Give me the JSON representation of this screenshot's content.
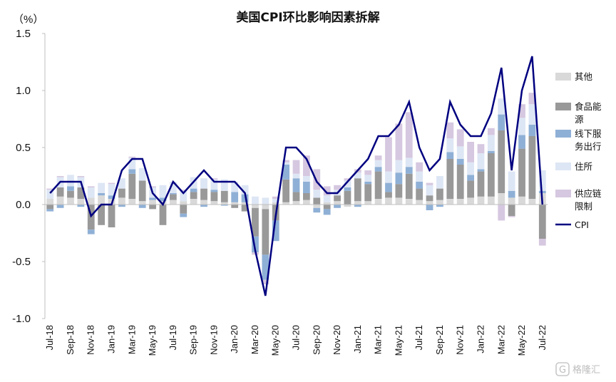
{
  "chart_data": {
    "type": "bar",
    "title": "美国CPI环比影响因素拆解",
    "ylabel": "（%）",
    "xlabel": "",
    "ylim": [
      -1.0,
      1.5
    ],
    "yticks": [
      {
        "value": 1.5,
        "label": "1.5",
        "color": "#111111"
      },
      {
        "value": 1.0,
        "label": "1.0",
        "color": "#111111"
      },
      {
        "value": 0.5,
        "label": "0.5",
        "color": "#111111"
      },
      {
        "value": 0.0,
        "label": "0.0",
        "color": "#111111"
      },
      {
        "value": -0.5,
        "label": "-0.5",
        "color": "#e0191f"
      },
      {
        "value": -1.0,
        "label": "-1.0",
        "color": "#e0191f"
      }
    ],
    "grid": false,
    "legend_position": "right",
    "categories": [
      "Jul-18",
      "Aug-18",
      "Sep-18",
      "Oct-18",
      "Nov-18",
      "Dec-18",
      "Jan-19",
      "Feb-19",
      "Mar-19",
      "Apr-19",
      "May-19",
      "Jun-19",
      "Jul-19",
      "Aug-19",
      "Sep-19",
      "Oct-19",
      "Nov-19",
      "Dec-19",
      "Jan-20",
      "Feb-20",
      "Mar-20",
      "Apr-20",
      "May-20",
      "Jun-20",
      "Jul-20",
      "Aug-20",
      "Sep-20",
      "Oct-20",
      "Nov-20",
      "Dec-20",
      "Jan-21",
      "Feb-21",
      "Mar-21",
      "Apr-21",
      "May-21",
      "Jun-21",
      "Jul-21",
      "Aug-21",
      "Sep-21",
      "Oct-21",
      "Nov-21",
      "Dec-21",
      "Jan-22",
      "Feb-22",
      "Mar-22",
      "Apr-22",
      "May-22",
      "Jun-22",
      "Jul-22"
    ],
    "xtick_labels": [
      "Jul-18",
      "",
      "Sep-18",
      "",
      "Nov-18",
      "",
      "Jan-19",
      "",
      "Mar-19",
      "",
      "May-19",
      "",
      "Jul-19",
      "",
      "Sep-19",
      "",
      "Nov-19",
      "",
      "Jan-20",
      "",
      "Mar-20",
      "",
      "May-20",
      "",
      "Jul-20",
      "",
      "Sep-20",
      "",
      "Nov-20",
      "",
      "Jan-21",
      "",
      "Mar-21",
      "",
      "May-21",
      "",
      "Jul-21",
      "",
      "Sep-21",
      "",
      "Nov-21",
      "",
      "Jan-22",
      "",
      "Mar-22",
      "",
      "May-22",
      "",
      "Jul-22"
    ],
    "series": [
      {
        "name": "其他",
        "kind": "bar",
        "color": "#d9d9d9",
        "values": [
          0.05,
          0.07,
          0.06,
          0.05,
          0.06,
          0.08,
          0.05,
          0.06,
          0.05,
          0.03,
          0.04,
          0.03,
          0.04,
          0.03,
          0.05,
          0.04,
          0.03,
          0.02,
          0.02,
          0.02,
          -0.03,
          -0.04,
          0.02,
          0.02,
          0.03,
          0.04,
          -0.03,
          0.02,
          0.03,
          -0.02,
          0.03,
          0.03,
          0.05,
          0.06,
          0.06,
          0.05,
          0.04,
          0.03,
          0.04,
          0.05,
          0.05,
          0.06,
          0.07,
          0.07,
          0.1,
          0.06,
          0.07,
          0.05,
          0.1
        ]
      },
      {
        "name": "食品能源",
        "kind": "bar",
        "color": "#999999",
        "values": [
          -0.04,
          0.08,
          0.06,
          0.1,
          -0.22,
          -0.18,
          -0.2,
          0.08,
          0.22,
          0.18,
          -0.04,
          -0.18,
          0.05,
          -0.08,
          0.06,
          0.1,
          0.08,
          0.1,
          -0.03,
          -0.06,
          -0.25,
          -0.4,
          -0.14,
          0.2,
          0.08,
          0.06,
          0.06,
          -0.04,
          0.05,
          0.12,
          0.2,
          0.15,
          0.24,
          0.05,
          0.12,
          0.22,
          0.1,
          0.05,
          0.1,
          0.35,
          0.3,
          0.15,
          0.22,
          0.38,
          0.55,
          -0.1,
          0.42,
          0.55,
          -0.3
        ]
      },
      {
        "name": "线下服务出行",
        "kind": "bar",
        "color": "#8fb0d6",
        "values": [
          -0.02,
          -0.03,
          0.04,
          -0.02,
          -0.04,
          0.02,
          0.03,
          -0.02,
          0.04,
          -0.03,
          0.02,
          0.03,
          0.01,
          -0.03,
          0.03,
          -0.02,
          0.02,
          -0.01,
          0.09,
          0.07,
          -0.14,
          -0.22,
          -0.18,
          0.13,
          0.12,
          0.1,
          -0.04,
          -0.05,
          -0.03,
          0.03,
          -0.02,
          0.02,
          0.04,
          0.08,
          0.1,
          0.06,
          0.06,
          -0.05,
          -0.02,
          0.06,
          0.05,
          0.05,
          0.02,
          0.02,
          0.14,
          0.06,
          0.12,
          0.1,
          0.02
        ]
      },
      {
        "name": "住所",
        "kind": "bar",
        "color": "#dde6f4",
        "values": [
          0.08,
          0.09,
          0.1,
          0.09,
          0.09,
          0.09,
          0.1,
          0.09,
          0.1,
          0.11,
          0.09,
          0.11,
          0.1,
          0.09,
          0.1,
          0.09,
          0.09,
          0.1,
          0.09,
          0.08,
          0.07,
          0.06,
          0.03,
          0.02,
          0.04,
          0.05,
          0.07,
          0.06,
          0.05,
          0.06,
          0.05,
          0.06,
          0.06,
          0.1,
          0.11,
          0.08,
          0.09,
          0.09,
          0.11,
          0.12,
          0.11,
          0.11,
          0.14,
          0.14,
          0.14,
          0.17,
          0.15,
          0.18,
          0.18
        ]
      },
      {
        "name": "供应链限制",
        "kind": "bar",
        "color": "#d6c8e0",
        "values": [
          0.01,
          0.01,
          0.0,
          0.01,
          0.01,
          0.0,
          0.01,
          0.0,
          0.01,
          0.0,
          0.01,
          0.0,
          0.0,
          0.01,
          0.0,
          0.0,
          0.01,
          0.0,
          0.0,
          0.0,
          -0.02,
          -0.04,
          0.02,
          0.02,
          0.12,
          0.18,
          0.18,
          0.08,
          0.04,
          0.02,
          0.03,
          0.04,
          0.04,
          0.3,
          0.32,
          0.4,
          0.08,
          0.02,
          0.0,
          0.14,
          0.15,
          0.18,
          0.08,
          0.06,
          -0.14,
          -0.01,
          0.12,
          0.1,
          -0.06
        ]
      },
      {
        "name": "CPI",
        "kind": "line",
        "color": "#000080",
        "values": [
          0.1,
          0.2,
          0.2,
          0.2,
          -0.1,
          0.0,
          0.0,
          0.3,
          0.4,
          0.4,
          0.1,
          0.0,
          0.2,
          0.1,
          0.2,
          0.3,
          0.2,
          0.2,
          0.2,
          0.1,
          -0.4,
          -0.8,
          -0.1,
          0.5,
          0.5,
          0.4,
          0.2,
          0.1,
          0.1,
          0.2,
          0.3,
          0.4,
          0.6,
          0.6,
          0.7,
          0.9,
          0.5,
          0.3,
          0.4,
          0.9,
          0.7,
          0.6,
          0.6,
          0.8,
          1.2,
          0.3,
          1.0,
          1.3,
          0.0
        ]
      }
    ],
    "legend": [
      {
        "key": "other",
        "lines": [
          "其他"
        ],
        "swatch": "box",
        "color": "#d9d9d9"
      },
      {
        "key": "food_energy",
        "lines": [
          "食品能",
          "源"
        ],
        "swatch": "box",
        "color": "#999999"
      },
      {
        "key": "offline_service",
        "lines": [
          "线下服",
          "务出行"
        ],
        "swatch": "box",
        "color": "#8fb0d6"
      },
      {
        "key": "shelter",
        "lines": [
          "住所"
        ],
        "swatch": "box",
        "color": "#dde6f4"
      },
      {
        "key": "supply_chain",
        "lines": [
          "供应链",
          "限制"
        ],
        "swatch": "box",
        "color": "#d6c8e0"
      },
      {
        "key": "cpi",
        "lines": [
          "CPI"
        ],
        "swatch": "line",
        "color": "#000080"
      }
    ]
  },
  "watermark": {
    "text": "格隆汇",
    "icon": "glh-logo-icon"
  }
}
